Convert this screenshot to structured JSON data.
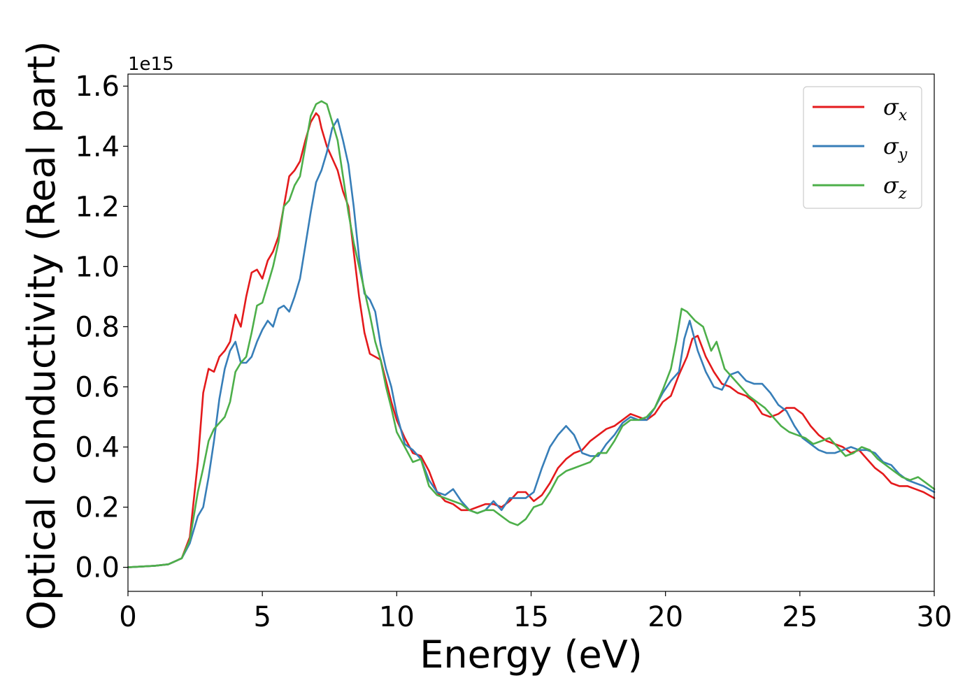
{
  "chart_data": {
    "type": "line",
    "title": "",
    "xlabel": "Energy (eV)",
    "ylabel": "Optical conductivity (Real part)",
    "offset_text": "1e15",
    "xlim": [
      0,
      30
    ],
    "ylim": [
      -0.08,
      1.64
    ],
    "xticks": [
      0,
      5,
      10,
      15,
      20,
      25,
      30
    ],
    "xtick_labels": [
      "0",
      "5",
      "10",
      "15",
      "20",
      "25",
      "30"
    ],
    "yticks": [
      0.0,
      0.2,
      0.4,
      0.6,
      0.8,
      1.0,
      1.2,
      1.4,
      1.6
    ],
    "ytick_labels": [
      "0.0",
      "0.2",
      "0.4",
      "0.6",
      "0.8",
      "1.0",
      "1.2",
      "1.4",
      "1.6"
    ],
    "grid": false,
    "legend_position": "top-right",
    "series": [
      {
        "name": "σx",
        "symbol": "σ",
        "subscript": "x",
        "color": "#e41a1c",
        "x": [
          0,
          1,
          1.5,
          2,
          2.3,
          2.6,
          2.8,
          3,
          3.2,
          3.4,
          3.6,
          3.8,
          4,
          4.2,
          4.4,
          4.6,
          4.8,
          5,
          5.2,
          5.4,
          5.6,
          5.8,
          6,
          6.2,
          6.4,
          6.6,
          6.8,
          7,
          7.1,
          7.2,
          7.4,
          7.6,
          7.8,
          8,
          8.2,
          8.4,
          8.6,
          8.8,
          9,
          9.2,
          9.4,
          9.6,
          9.8,
          10,
          10.3,
          10.6,
          10.9,
          11.2,
          11.5,
          11.8,
          12.1,
          12.4,
          12.7,
          13,
          13.3,
          13.6,
          13.9,
          14.2,
          14.5,
          14.8,
          15.1,
          15.4,
          15.7,
          16,
          16.3,
          16.6,
          16.9,
          17.2,
          17.5,
          17.8,
          18.1,
          18.4,
          18.7,
          19,
          19.3,
          19.6,
          19.9,
          20.2,
          20.5,
          20.8,
          21,
          21.2,
          21.5,
          21.8,
          22.1,
          22.4,
          22.7,
          23,
          23.3,
          23.6,
          23.9,
          24.2,
          24.5,
          24.8,
          25.1,
          25.4,
          25.7,
          26,
          26.3,
          26.6,
          26.9,
          27.2,
          27.5,
          27.8,
          28.1,
          28.4,
          28.7,
          29,
          29.3,
          29.6,
          30
        ],
        "y": [
          0,
          0.005,
          0.01,
          0.03,
          0.1,
          0.35,
          0.58,
          0.66,
          0.65,
          0.7,
          0.72,
          0.75,
          0.84,
          0.8,
          0.9,
          0.98,
          0.99,
          0.96,
          1.02,
          1.05,
          1.1,
          1.2,
          1.3,
          1.32,
          1.35,
          1.42,
          1.48,
          1.51,
          1.5,
          1.46,
          1.4,
          1.36,
          1.32,
          1.25,
          1.2,
          1.05,
          0.9,
          0.78,
          0.71,
          0.7,
          0.69,
          0.62,
          0.55,
          0.49,
          0.43,
          0.38,
          0.37,
          0.32,
          0.25,
          0.22,
          0.21,
          0.19,
          0.19,
          0.2,
          0.21,
          0.21,
          0.2,
          0.22,
          0.25,
          0.25,
          0.22,
          0.24,
          0.28,
          0.33,
          0.36,
          0.38,
          0.39,
          0.42,
          0.44,
          0.46,
          0.47,
          0.49,
          0.51,
          0.5,
          0.49,
          0.51,
          0.55,
          0.57,
          0.64,
          0.7,
          0.76,
          0.77,
          0.7,
          0.65,
          0.61,
          0.6,
          0.58,
          0.57,
          0.55,
          0.51,
          0.5,
          0.51,
          0.53,
          0.53,
          0.51,
          0.47,
          0.44,
          0.42,
          0.41,
          0.4,
          0.38,
          0.39,
          0.36,
          0.33,
          0.31,
          0.28,
          0.27,
          0.27,
          0.26,
          0.25,
          0.23
        ]
      },
      {
        "name": "σy",
        "symbol": "σ",
        "subscript": "y",
        "color": "#377eb8",
        "x": [
          0,
          1,
          1.5,
          2,
          2.3,
          2.6,
          2.8,
          3,
          3.2,
          3.4,
          3.6,
          3.8,
          4,
          4.2,
          4.4,
          4.6,
          4.8,
          5,
          5.2,
          5.4,
          5.6,
          5.8,
          6,
          6.2,
          6.4,
          6.6,
          6.8,
          7,
          7.2,
          7.4,
          7.6,
          7.8,
          8,
          8.2,
          8.4,
          8.6,
          8.8,
          9,
          9.2,
          9.4,
          9.6,
          9.8,
          10,
          10.3,
          10.6,
          10.9,
          11.2,
          11.5,
          11.8,
          12.1,
          12.4,
          12.7,
          13,
          13.3,
          13.6,
          13.9,
          14.2,
          14.5,
          14.8,
          15.1,
          15.4,
          15.7,
          16,
          16.3,
          16.6,
          16.9,
          17.2,
          17.5,
          17.8,
          18.1,
          18.4,
          18.7,
          19,
          19.3,
          19.6,
          19.9,
          20.2,
          20.5,
          20.7,
          20.9,
          21.2,
          21.5,
          21.8,
          22.1,
          22.4,
          22.7,
          23,
          23.3,
          23.6,
          23.9,
          24.2,
          24.5,
          24.8,
          25.1,
          25.4,
          25.7,
          26,
          26.3,
          26.6,
          26.9,
          27.2,
          27.5,
          27.8,
          28.1,
          28.4,
          28.7,
          29,
          29.3,
          29.6,
          30
        ],
        "y": [
          0,
          0.005,
          0.01,
          0.03,
          0.08,
          0.17,
          0.2,
          0.3,
          0.42,
          0.56,
          0.66,
          0.72,
          0.75,
          0.68,
          0.68,
          0.7,
          0.75,
          0.79,
          0.82,
          0.8,
          0.86,
          0.87,
          0.85,
          0.9,
          0.96,
          1.07,
          1.18,
          1.28,
          1.32,
          1.38,
          1.46,
          1.49,
          1.42,
          1.34,
          1.2,
          1.03,
          0.91,
          0.89,
          0.85,
          0.74,
          0.66,
          0.6,
          0.51,
          0.41,
          0.39,
          0.36,
          0.29,
          0.25,
          0.24,
          0.26,
          0.22,
          0.19,
          0.18,
          0.19,
          0.22,
          0.19,
          0.23,
          0.23,
          0.23,
          0.25,
          0.33,
          0.4,
          0.44,
          0.47,
          0.44,
          0.38,
          0.37,
          0.37,
          0.41,
          0.44,
          0.48,
          0.5,
          0.49,
          0.49,
          0.53,
          0.58,
          0.62,
          0.65,
          0.76,
          0.82,
          0.72,
          0.65,
          0.6,
          0.59,
          0.64,
          0.65,
          0.62,
          0.61,
          0.61,
          0.58,
          0.54,
          0.52,
          0.47,
          0.43,
          0.41,
          0.39,
          0.38,
          0.38,
          0.39,
          0.4,
          0.39,
          0.39,
          0.38,
          0.35,
          0.34,
          0.31,
          0.29,
          0.28,
          0.27,
          0.25
        ]
      },
      {
        "name": "σz",
        "symbol": "σ",
        "subscript": "z",
        "color": "#4daf4a",
        "x": [
          0,
          1,
          1.5,
          2,
          2.3,
          2.6,
          2.8,
          3,
          3.2,
          3.4,
          3.6,
          3.8,
          4,
          4.2,
          4.4,
          4.6,
          4.8,
          5,
          5.2,
          5.4,
          5.6,
          5.8,
          6,
          6.2,
          6.4,
          6.6,
          6.8,
          7,
          7.2,
          7.4,
          7.6,
          7.8,
          8,
          8.2,
          8.4,
          8.6,
          8.8,
          9,
          9.2,
          9.4,
          9.6,
          9.8,
          10,
          10.3,
          10.6,
          10.9,
          11.2,
          11.5,
          11.8,
          12.1,
          12.4,
          12.7,
          13,
          13.3,
          13.6,
          13.9,
          14.2,
          14.5,
          14.8,
          15.1,
          15.4,
          15.7,
          16,
          16.3,
          16.6,
          16.9,
          17.2,
          17.5,
          17.8,
          18.1,
          18.4,
          18.7,
          19,
          19.3,
          19.6,
          19.9,
          20.2,
          20.4,
          20.6,
          20.8,
          21.1,
          21.4,
          21.7,
          21.9,
          22.2,
          22.5,
          22.8,
          23.1,
          23.4,
          23.7,
          24,
          24.3,
          24.6,
          24.9,
          25.2,
          25.5,
          25.8,
          26.1,
          26.4,
          26.7,
          27,
          27.3,
          27.6,
          27.9,
          28.2,
          28.5,
          28.8,
          29.1,
          29.4,
          29.7,
          30
        ],
        "y": [
          0,
          0.005,
          0.01,
          0.03,
          0.09,
          0.25,
          0.33,
          0.42,
          0.46,
          0.48,
          0.5,
          0.55,
          0.65,
          0.68,
          0.7,
          0.78,
          0.87,
          0.88,
          0.94,
          1.0,
          1.08,
          1.2,
          1.22,
          1.27,
          1.3,
          1.4,
          1.5,
          1.54,
          1.55,
          1.54,
          1.48,
          1.42,
          1.3,
          1.18,
          1.08,
          1.0,
          0.92,
          0.84,
          0.75,
          0.69,
          0.6,
          0.53,
          0.45,
          0.4,
          0.35,
          0.36,
          0.27,
          0.24,
          0.23,
          0.22,
          0.21,
          0.19,
          0.18,
          0.19,
          0.19,
          0.17,
          0.15,
          0.14,
          0.16,
          0.2,
          0.21,
          0.25,
          0.3,
          0.32,
          0.33,
          0.34,
          0.35,
          0.38,
          0.38,
          0.42,
          0.47,
          0.49,
          0.49,
          0.5,
          0.53,
          0.59,
          0.66,
          0.75,
          0.86,
          0.85,
          0.82,
          0.8,
          0.72,
          0.75,
          0.66,
          0.63,
          0.6,
          0.57,
          0.55,
          0.53,
          0.5,
          0.47,
          0.45,
          0.44,
          0.43,
          0.41,
          0.42,
          0.43,
          0.4,
          0.37,
          0.38,
          0.4,
          0.39,
          0.36,
          0.34,
          0.32,
          0.3,
          0.29,
          0.3,
          0.28,
          0.26
        ]
      }
    ]
  }
}
